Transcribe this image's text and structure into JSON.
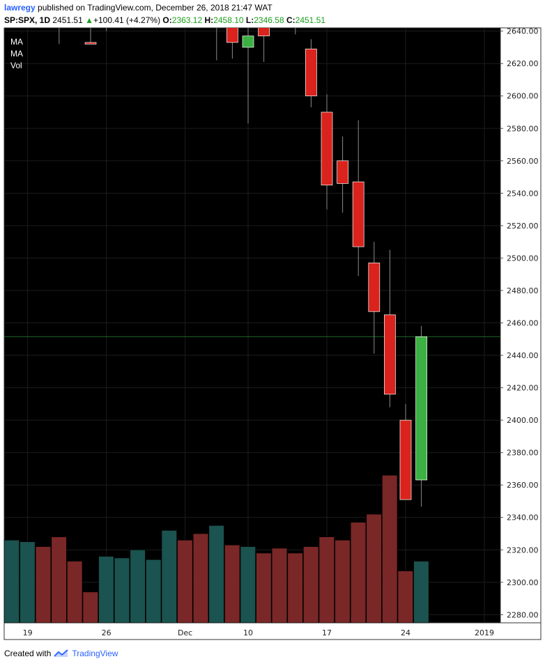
{
  "header": {
    "user": "lawregy",
    "published_text": "published on TradingView.com, December 26, 2018 21:47 WAT",
    "symbol": "SP:SPX, 1D",
    "last": "2451.51",
    "change": "+100.41 (+4.27%)",
    "open_label": "O:",
    "open": "2363.12",
    "high_label": "H:",
    "high": "2458.10",
    "low_label": "L:",
    "low": "2346.58",
    "close_label": "C:",
    "close": "2451.51"
  },
  "legend": [
    "MA",
    "MA",
    "Vol"
  ],
  "footer": {
    "created_with": "Created with",
    "brand": "TradingView"
  },
  "colors": {
    "background": "#000000",
    "up_candle": "#3cb043",
    "down_candle": "#d9231c",
    "up_volume": "#1a5350",
    "down_volume": "#7a2727",
    "last_price_line": "#1f6b2a",
    "header_positive": "#1a9e1a"
  },
  "chart_data": {
    "type": "candlestick",
    "y_axis_labels": [
      "2640.00",
      "2620.00",
      "2600.00",
      "2580.00",
      "2560.00",
      "2540.00",
      "2520.00",
      "2500.00",
      "2480.00",
      "2460.00",
      "2440.00",
      "2420.00",
      "2400.00",
      "2380.00",
      "2360.00",
      "2340.00",
      "2320.00",
      "2300.00",
      "2280.00"
    ],
    "ylim": [
      2275,
      2642
    ],
    "x_axis_labels": [
      {
        "label": "19",
        "index": 1
      },
      {
        "label": "26",
        "index": 6
      },
      {
        "label": "Dec",
        "index": 11
      },
      {
        "label": "10",
        "index": 15
      },
      {
        "label": "17",
        "index": 20
      },
      {
        "label": "24",
        "index": 25
      },
      {
        "label": "2019",
        "index": 30
      }
    ],
    "last_price": 2451.51,
    "candles": [
      {
        "i": 3,
        "o": 2648,
        "h": 2652,
        "l": 2632,
        "c": 2650
      },
      {
        "i": 5,
        "o": 2633,
        "h": 2650,
        "l": 2632,
        "c": 2632
      },
      {
        "i": 6,
        "o": 2648,
        "h": 2652,
        "l": 2640,
        "c": 2650
      },
      {
        "i": 13,
        "o": 2660,
        "h": 2680,
        "l": 2622,
        "c": 2650
      },
      {
        "i": 14,
        "o": 2648,
        "h": 2660,
        "l": 2623,
        "c": 2633
      },
      {
        "i": 15,
        "o": 2630,
        "h": 2648,
        "l": 2583,
        "c": 2637
      },
      {
        "i": 16,
        "o": 2648,
        "h": 2660,
        "l": 2621,
        "c": 2637
      },
      {
        "i": 18,
        "o": 2650,
        "h": 2660,
        "l": 2638,
        "c": 2650
      },
      {
        "i": 19,
        "o": 2629,
        "h": 2635,
        "l": 2593,
        "c": 2600
      },
      {
        "i": 20,
        "o": 2590,
        "h": 2601,
        "l": 2530,
        "c": 2545
      },
      {
        "i": 21,
        "o": 2560,
        "h": 2575,
        "l": 2528,
        "c": 2546
      },
      {
        "i": 22,
        "o": 2547,
        "h": 2585,
        "l": 2489,
        "c": 2507
      },
      {
        "i": 23,
        "o": 2497,
        "h": 2510,
        "l": 2441,
        "c": 2467
      },
      {
        "i": 24,
        "o": 2465,
        "h": 2505,
        "l": 2408,
        "c": 2416
      },
      {
        "i": 25,
        "o": 2400,
        "h": 2410,
        "l": 2351,
        "c": 2351
      },
      {
        "i": 26,
        "o": 2363.12,
        "h": 2458.1,
        "l": 2346.58,
        "c": 2451.51
      }
    ],
    "volume": [
      {
        "i": 0,
        "v": 2326,
        "up": true
      },
      {
        "i": 1,
        "v": 2325,
        "up": true
      },
      {
        "i": 2,
        "v": 2322,
        "up": false
      },
      {
        "i": 3,
        "v": 2328,
        "up": false
      },
      {
        "i": 4,
        "v": 2313,
        "up": false
      },
      {
        "i": 5,
        "v": 2294,
        "up": false
      },
      {
        "i": 6,
        "v": 2316,
        "up": true
      },
      {
        "i": 7,
        "v": 2315,
        "up": true
      },
      {
        "i": 8,
        "v": 2320,
        "up": true
      },
      {
        "i": 9,
        "v": 2314,
        "up": true
      },
      {
        "i": 10,
        "v": 2332,
        "up": true
      },
      {
        "i": 11,
        "v": 2326,
        "up": false
      },
      {
        "i": 12,
        "v": 2330,
        "up": false
      },
      {
        "i": 13,
        "v": 2335,
        "up": true
      },
      {
        "i": 14,
        "v": 2323,
        "up": false
      },
      {
        "i": 15,
        "v": 2322,
        "up": true
      },
      {
        "i": 16,
        "v": 2318,
        "up": false
      },
      {
        "i": 17,
        "v": 2321,
        "up": false
      },
      {
        "i": 18,
        "v": 2318,
        "up": false
      },
      {
        "i": 19,
        "v": 2322,
        "up": false
      },
      {
        "i": 20,
        "v": 2328,
        "up": false
      },
      {
        "i": 21,
        "v": 2326,
        "up": false
      },
      {
        "i": 22,
        "v": 2337,
        "up": false
      },
      {
        "i": 23,
        "v": 2342,
        "up": false
      },
      {
        "i": 24,
        "v": 2366,
        "up": false
      },
      {
        "i": 25,
        "v": 2307,
        "up": false
      },
      {
        "i": 26,
        "v": 2313,
        "up": true
      }
    ]
  }
}
